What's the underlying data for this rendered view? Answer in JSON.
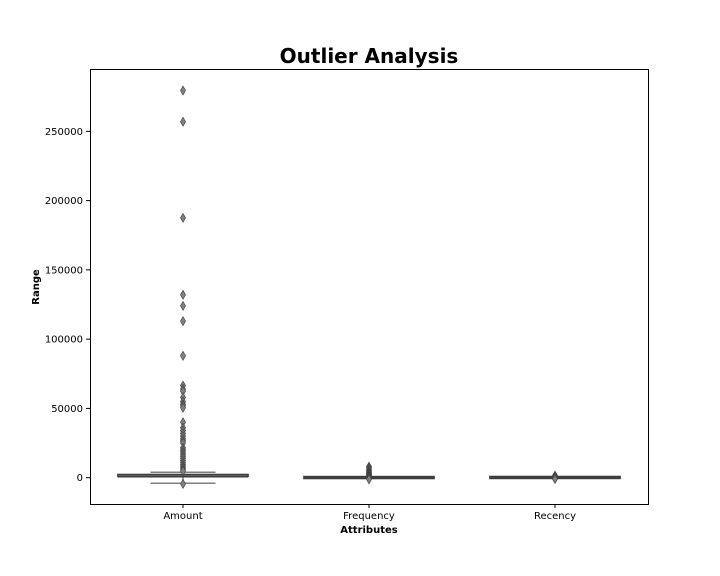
{
  "chart_data": {
    "type": "box",
    "title": "Outlier Analysis",
    "xlabel": "Attributes",
    "ylabel": "Range",
    "categories": [
      "Amount",
      "Frequency",
      "Recency"
    ],
    "ylim": [
      -19000,
      295000
    ],
    "yticks": [
      0,
      50000,
      100000,
      150000,
      200000,
      250000
    ],
    "ytick_labels": [
      "0",
      "50000",
      "100000",
      "150000",
      "200000",
      "250000"
    ],
    "grid": false,
    "box_color": "#808080",
    "series": [
      {
        "category": "Amount",
        "whisker_low": -4000,
        "q1": 300,
        "median": 700,
        "q3": 1600,
        "whisker_high": 3900,
        "outliers": [
          279500,
          256900,
          187500,
          132000,
          124000,
          113000,
          88000,
          66500,
          64000,
          62500,
          58000,
          55000,
          53000,
          52000,
          50500,
          40000,
          36000,
          34000,
          32000,
          30000,
          28000,
          26500,
          25000,
          21500,
          20000,
          18500,
          17000,
          15500,
          14000,
          12500,
          11000,
          9500,
          8200,
          7000,
          5800,
          4800,
          -4500
        ]
      },
      {
        "category": "Frequency",
        "whisker_low": -100,
        "q1": 20,
        "median": 40,
        "q3": 100,
        "whisker_high": 250,
        "outliers": [
          8000,
          7000,
          6000,
          5000,
          4300,
          3500,
          3000,
          2500,
          2000,
          1500,
          1000,
          700,
          400,
          -300,
          -700,
          -1200
        ]
      },
      {
        "category": "Recency",
        "whisker_low": -150,
        "q1": 20,
        "median": 50,
        "q3": 150,
        "whisker_high": 350,
        "outliers": [
          1500,
          1000,
          600,
          -300,
          -600,
          -1000
        ]
      }
    ]
  }
}
